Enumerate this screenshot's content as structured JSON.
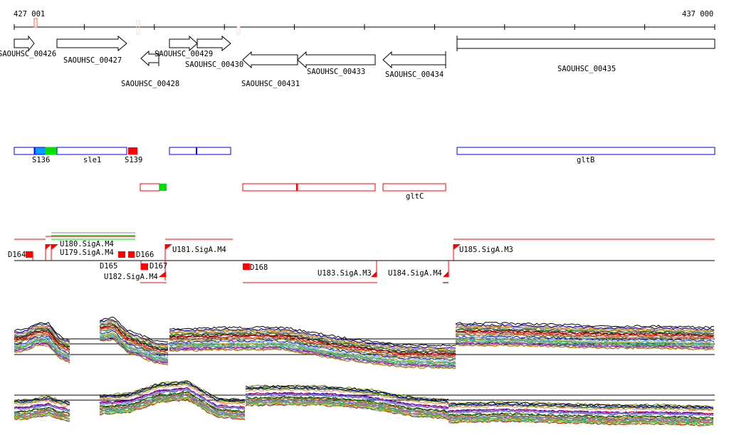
{
  "ruler": {
    "start_label": "427 001",
    "end_label": "437 000"
  },
  "genes": [
    {
      "name": "SAOUHSC_00426",
      "strand": "+"
    },
    {
      "name": "SAOUHSC_00427",
      "strand": "+"
    },
    {
      "name": "SAOUHSC_00428",
      "strand": "-"
    },
    {
      "name": "SAOUHSC_00429",
      "strand": "+"
    },
    {
      "name": "SAOUHSC_00430",
      "strand": "+"
    },
    {
      "name": "SAOUHSC_00431",
      "strand": "-"
    },
    {
      "name": "SAOUHSC_00433",
      "strand": "-"
    },
    {
      "name": "SAOUHSC_00434",
      "strand": "-"
    },
    {
      "name": "SAOUHSC_00435",
      "strand": "+"
    }
  ],
  "features_plus": [
    {
      "label": "S136"
    },
    {
      "label": "sle1"
    },
    {
      "label": "S139"
    },
    {
      "label": "gltB"
    }
  ],
  "features_minus": [
    {
      "label": "gltC"
    }
  ],
  "promoters": [
    {
      "label": "D164"
    },
    {
      "label": "U179.SigA.M4"
    },
    {
      "label": "U180.SigA.M4"
    },
    {
      "label": "D165"
    },
    {
      "label": "D166"
    },
    {
      "label": "U181.SigA.M4"
    },
    {
      "label": "D167"
    },
    {
      "label": "U182.SigA.M4"
    },
    {
      "label": "D168"
    },
    {
      "label": "U183.SigA.M3"
    },
    {
      "label": "U184.SigA.M4"
    },
    {
      "label": "U185.SigA.M3"
    }
  ],
  "colors": {
    "red": "#ff0000",
    "blue": "#0000ff",
    "green": "#00e000",
    "accent_light": "#ffd0c0"
  }
}
